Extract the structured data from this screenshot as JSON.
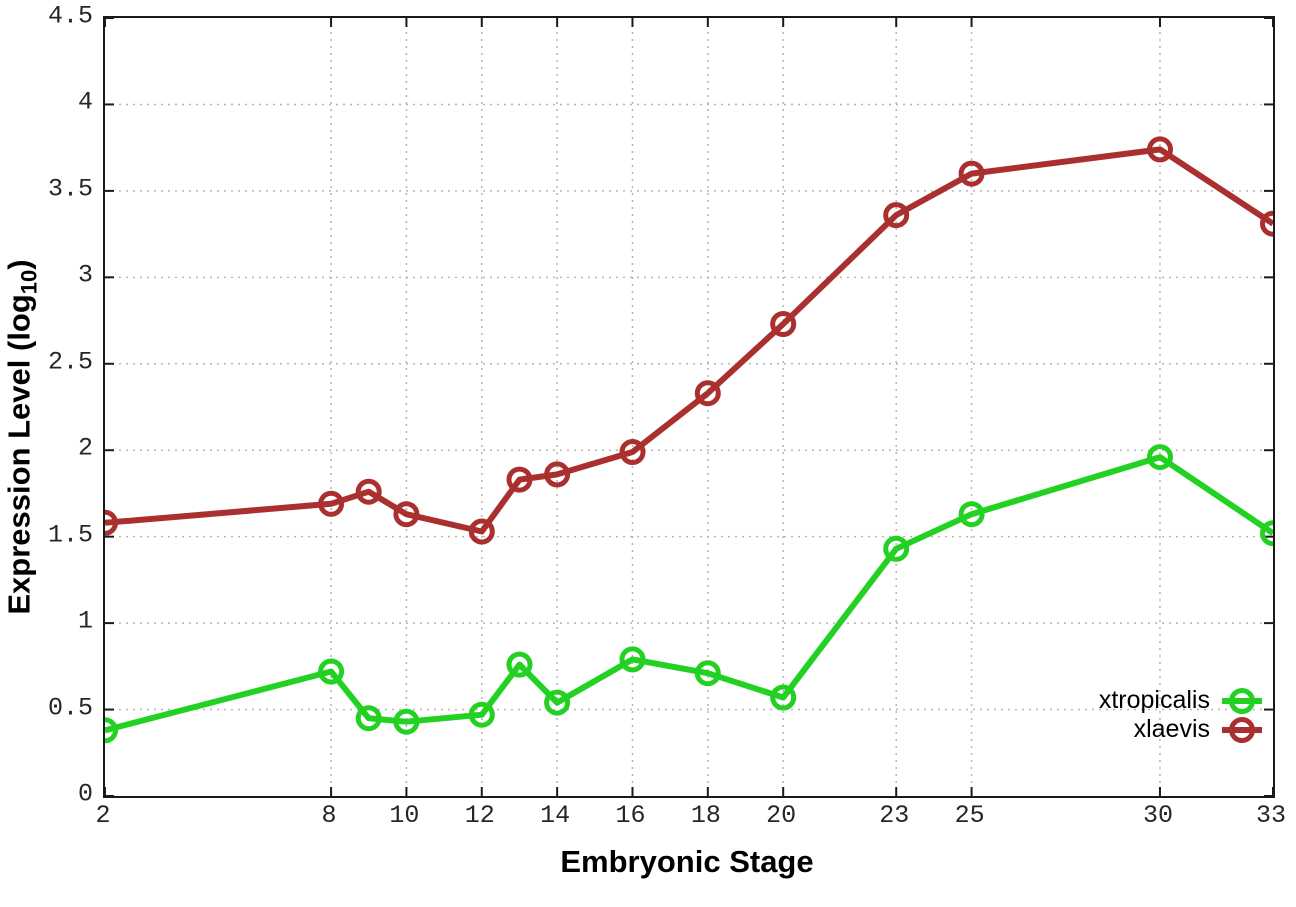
{
  "figure": {
    "background": "#ffffff",
    "border_color": "#1a1a1a",
    "grid_color": "#b5b5b5",
    "tick_label_color": "#262626"
  },
  "chart_data": {
    "type": "line",
    "title": "",
    "xlabel": "Embryonic Stage",
    "ylabel": "Expression Level (log10)",
    "ylabel_parts": {
      "pre": "Expression Level (log",
      "sub": "10",
      "post": ")"
    },
    "xlim": [
      2,
      33
    ],
    "ylim": [
      0,
      4.5
    ],
    "grid": true,
    "legend_position": "inside-bottom-right",
    "x_ticks": [
      2,
      8,
      10,
      12,
      14,
      16,
      18,
      20,
      23,
      25,
      30,
      33
    ],
    "x_tick_labels": [
      "2",
      "8",
      "10",
      "12",
      "14",
      "16",
      "18",
      "20",
      "23",
      "25",
      "30",
      "33"
    ],
    "y_ticks": [
      0,
      0.5,
      1,
      1.5,
      2,
      2.5,
      3,
      3.5,
      4,
      4.5
    ],
    "y_tick_labels": [
      "0",
      "0.5",
      "1",
      "1.5",
      "2",
      "2.5",
      "3",
      "3.5",
      "4",
      "4.5"
    ],
    "x": [
      2,
      8,
      9,
      10,
      12,
      13,
      14,
      16,
      18,
      20,
      23,
      25,
      30,
      33
    ],
    "series": [
      {
        "name": "xtropicalis",
        "color": "#22d122",
        "marker": "open-circle",
        "values": [
          0.38,
          0.72,
          0.45,
          0.43,
          0.47,
          0.76,
          0.54,
          0.79,
          0.71,
          0.57,
          1.43,
          1.63,
          1.96,
          1.52
        ]
      },
      {
        "name": "xlaevis",
        "color": "#aa3030",
        "marker": "open-circle",
        "values": [
          1.58,
          1.69,
          1.76,
          1.63,
          1.53,
          1.83,
          1.86,
          1.99,
          2.33,
          2.73,
          3.36,
          3.6,
          3.74,
          3.31
        ]
      }
    ]
  }
}
